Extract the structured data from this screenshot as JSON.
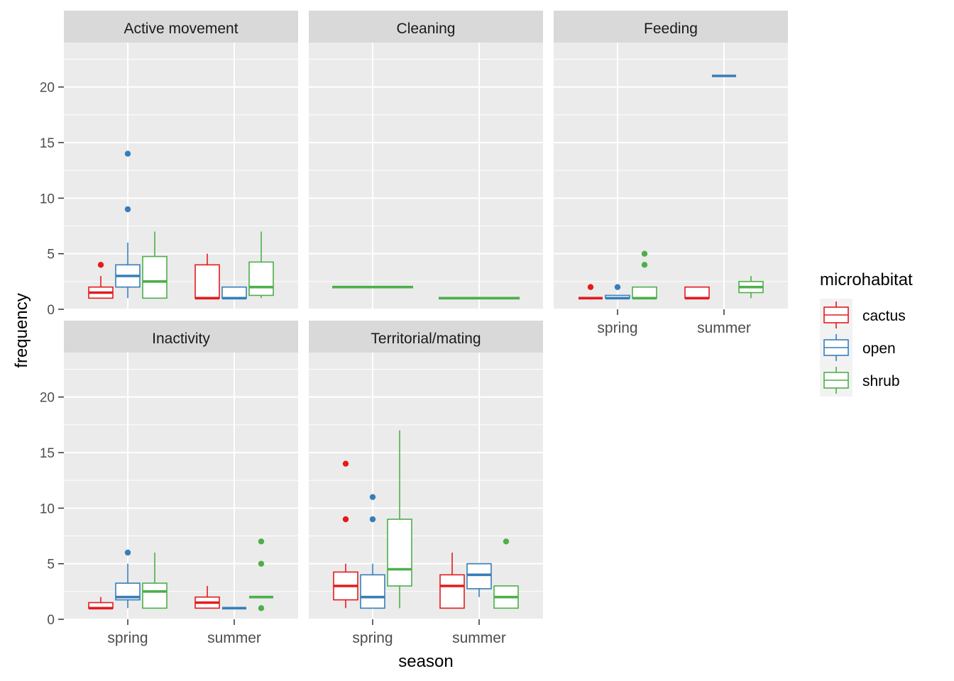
{
  "chart_data": {
    "type": "boxplot",
    "xlabel": "season",
    "ylabel": "frequency",
    "ylim": [
      0,
      24
    ],
    "y_ticks": [
      0,
      5,
      10,
      15,
      20
    ],
    "categories": [
      "spring",
      "summer"
    ],
    "grid": true,
    "legend": {
      "title": "microhabitat",
      "position": "right",
      "entries": [
        {
          "name": "cactus",
          "color": "#E41A1C"
        },
        {
          "name": "open",
          "color": "#377EB8"
        },
        {
          "name": "shrub",
          "color": "#4DAF4A"
        }
      ]
    },
    "panels": [
      {
        "title": "Active movement",
        "boxes": [
          {
            "season": "spring",
            "group": "cactus",
            "lower": 1,
            "q1": 1,
            "median": 1.5,
            "q3": 2,
            "upper": 3,
            "outliers": [
              4
            ]
          },
          {
            "season": "spring",
            "group": "open",
            "lower": 1,
            "q1": 2,
            "median": 3,
            "q3": 4,
            "upper": 6,
            "outliers": [
              9,
              14
            ]
          },
          {
            "season": "spring",
            "group": "shrub",
            "lower": 1,
            "q1": 1,
            "median": 2.5,
            "q3": 4.75,
            "upper": 7,
            "outliers": []
          },
          {
            "season": "summer",
            "group": "cactus",
            "lower": 1,
            "q1": 1,
            "median": 1,
            "q3": 4,
            "upper": 5,
            "outliers": []
          },
          {
            "season": "summer",
            "group": "open",
            "lower": 1,
            "q1": 1,
            "median": 1,
            "q3": 2,
            "upper": 2,
            "outliers": []
          },
          {
            "season": "summer",
            "group": "shrub",
            "lower": 1,
            "q1": 1.25,
            "median": 2,
            "q3": 4.25,
            "upper": 7,
            "outliers": []
          }
        ]
      },
      {
        "title": "Cleaning",
        "boxes": [
          {
            "season": "spring",
            "group": "shrub",
            "lower": 2,
            "q1": 2,
            "median": 2,
            "q3": 2,
            "upper": 2,
            "outliers": [],
            "solo": true
          },
          {
            "season": "summer",
            "group": "shrub",
            "lower": 1,
            "q1": 1,
            "median": 1,
            "q3": 1,
            "upper": 1,
            "outliers": [],
            "solo": true
          }
        ]
      },
      {
        "title": "Feeding",
        "boxes": [
          {
            "season": "spring",
            "group": "cactus",
            "lower": 1,
            "q1": 1,
            "median": 1,
            "q3": 1,
            "upper": 1,
            "outliers": [
              2
            ]
          },
          {
            "season": "spring",
            "group": "open",
            "lower": 1,
            "q1": 1,
            "median": 1,
            "q3": 1.25,
            "upper": 1.25,
            "outliers": [
              2
            ]
          },
          {
            "season": "spring",
            "group": "shrub",
            "lower": 1,
            "q1": 1,
            "median": 1,
            "q3": 2,
            "upper": 2,
            "outliers": [
              4,
              5
            ]
          },
          {
            "season": "summer",
            "group": "cactus",
            "lower": 1,
            "q1": 1,
            "median": 1,
            "q3": 2,
            "upper": 2,
            "outliers": []
          },
          {
            "season": "summer",
            "group": "open",
            "lower": 21,
            "q1": 21,
            "median": 21,
            "q3": 21,
            "upper": 21,
            "outliers": []
          },
          {
            "season": "summer",
            "group": "shrub",
            "lower": 1,
            "q1": 1.5,
            "median": 2,
            "q3": 2.5,
            "upper": 3,
            "outliers": []
          }
        ]
      },
      {
        "title": "Inactivity",
        "boxes": [
          {
            "season": "spring",
            "group": "cactus",
            "lower": 1,
            "q1": 1,
            "median": 1,
            "q3": 1.5,
            "upper": 2,
            "outliers": []
          },
          {
            "season": "spring",
            "group": "open",
            "lower": 1,
            "q1": 1.75,
            "median": 2,
            "q3": 3.25,
            "upper": 5,
            "outliers": [
              6
            ]
          },
          {
            "season": "spring",
            "group": "shrub",
            "lower": 1,
            "q1": 1,
            "median": 2.5,
            "q3": 3.25,
            "upper": 6,
            "outliers": []
          },
          {
            "season": "summer",
            "group": "cactus",
            "lower": 1,
            "q1": 1,
            "median": 1.5,
            "q3": 2,
            "upper": 3,
            "outliers": []
          },
          {
            "season": "summer",
            "group": "open",
            "lower": 1,
            "q1": 1,
            "median": 1,
            "q3": 1,
            "upper": 1,
            "outliers": []
          },
          {
            "season": "summer",
            "group": "shrub",
            "lower": 2,
            "q1": 2,
            "median": 2,
            "q3": 2,
            "upper": 2,
            "outliers": [
              1,
              5,
              7
            ]
          }
        ]
      },
      {
        "title": "Territorial/mating",
        "boxes": [
          {
            "season": "spring",
            "group": "cactus",
            "lower": 1,
            "q1": 1.75,
            "median": 3,
            "q3": 4.25,
            "upper": 5,
            "outliers": [
              9,
              14
            ]
          },
          {
            "season": "spring",
            "group": "open",
            "lower": 1,
            "q1": 1,
            "median": 2,
            "q3": 4,
            "upper": 5,
            "outliers": [
              9,
              11
            ]
          },
          {
            "season": "spring",
            "group": "shrub",
            "lower": 1,
            "q1": 3,
            "median": 4.5,
            "q3": 9,
            "upper": 17,
            "outliers": []
          },
          {
            "season": "summer",
            "group": "cactus",
            "lower": 1,
            "q1": 1,
            "median": 3,
            "q3": 4,
            "upper": 6,
            "outliers": []
          },
          {
            "season": "summer",
            "group": "open",
            "lower": 2,
            "q1": 2.75,
            "median": 4,
            "q3": 5,
            "upper": 5,
            "outliers": []
          },
          {
            "season": "summer",
            "group": "shrub",
            "lower": 1,
            "q1": 1,
            "median": 2,
            "q3": 3,
            "upper": 3,
            "outliers": [
              7
            ]
          }
        ]
      }
    ]
  }
}
